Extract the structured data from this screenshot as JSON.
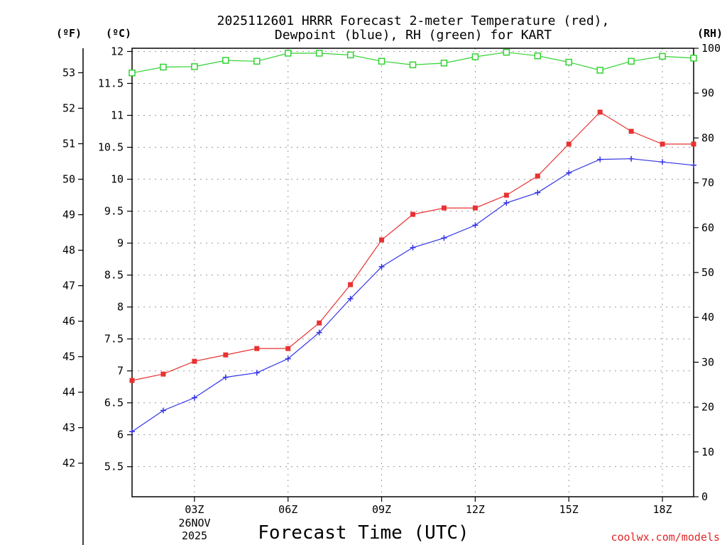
{
  "chart_data": {
    "type": "line",
    "title_line1": "2025112601 HRRR Forecast 2-meter Temperature (red),",
    "title_line2": "Dewpoint (blue), RH (green) for KART",
    "xlabel": "Forecast Time (UTC)",
    "credit": "coolwx.com/models",
    "grid": true,
    "units": {
      "fahrenheit": "(ºF)",
      "celsius": "(ºC)",
      "rh": "(RH)"
    },
    "x_hours": [
      1,
      2,
      3,
      4,
      5,
      6,
      7,
      8,
      9,
      10,
      11,
      12,
      13,
      14,
      15,
      16,
      17,
      18,
      19
    ],
    "xlim": [
      1,
      19
    ],
    "x_ticks": [
      {
        "hour": 3,
        "label": "03Z"
      },
      {
        "hour": 6,
        "label": "06Z"
      },
      {
        "hour": 9,
        "label": "09Z"
      },
      {
        "hour": 12,
        "label": "12Z"
      },
      {
        "hour": 15,
        "label": "15Z"
      },
      {
        "hour": 18,
        "label": "18Z"
      }
    ],
    "date_label_day": "26NOV",
    "date_label_year": "2025",
    "celsius_axis": {
      "ylim": [
        5.03,
        12.05
      ],
      "ticks": [
        "5.5",
        "6",
        "6.5",
        "7",
        "7.5",
        "8",
        "8.5",
        "9",
        "9.5",
        "10",
        "10.5",
        "11",
        "11.5",
        "12"
      ]
    },
    "fahrenheit_axis": {
      "ticks": [
        "42",
        "43",
        "44",
        "45",
        "46",
        "47",
        "48",
        "49",
        "50",
        "51",
        "52",
        "53"
      ]
    },
    "rh_axis": {
      "ylim": [
        0,
        100
      ],
      "ticks": [
        "0",
        "10",
        "20",
        "30",
        "40",
        "50",
        "60",
        "70",
        "80",
        "90",
        "100"
      ]
    },
    "series": [
      {
        "name": "Temperature",
        "axis": "celsius",
        "color": "#e83232",
        "marker": "filled-square",
        "values": [
          6.85,
          6.95,
          7.15,
          7.25,
          7.35,
          7.35,
          7.75,
          8.35,
          9.05,
          9.45,
          9.55,
          9.55,
          9.75,
          10.05,
          10.55,
          11.05,
          10.75,
          10.55,
          10.55
        ]
      },
      {
        "name": "Dewpoint",
        "axis": "celsius",
        "color": "#3232e8",
        "marker": "plus",
        "values": [
          6.05,
          6.38,
          6.58,
          6.9,
          6.97,
          7.19,
          7.6,
          8.13,
          8.63,
          8.93,
          9.08,
          9.28,
          9.63,
          9.79,
          10.1,
          10.31,
          10.32,
          10.27,
          10.22
        ]
      },
      {
        "name": "RH",
        "axis": "rh",
        "color": "#32d232",
        "marker": "open-square",
        "values": [
          94.5,
          95.8,
          95.9,
          97.3,
          97.1,
          98.9,
          98.9,
          98.5,
          97.1,
          96.3,
          96.7,
          98.1,
          99.1,
          98.3,
          96.9,
          95.1,
          97.1,
          98.2,
          97.8
        ]
      }
    ]
  }
}
